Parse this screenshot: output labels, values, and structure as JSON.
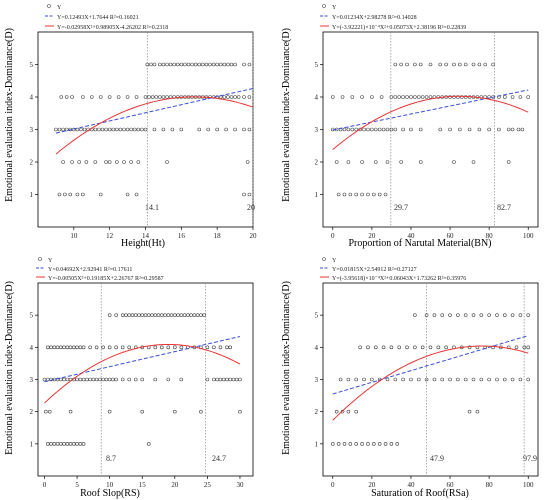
{
  "colors": {
    "points": "#444444",
    "linear": "#3a4fd6",
    "quadratic": "#e83434",
    "marker": "#888888",
    "axis": "#000000"
  },
  "chart_data": [
    {
      "type": "scatter",
      "xlabel": "Height(Ht)",
      "ylabel": "Emotional evaluation index-Dominance(D)",
      "xlim": [
        8,
        20
      ],
      "ylim": [
        0,
        6
      ],
      "xticks": [
        "10",
        "12",
        "14",
        "16",
        "18",
        "20"
      ],
      "yticks": [
        "1",
        "2",
        "3",
        "4",
        "5"
      ],
      "legend": {
        "placement": "top-left",
        "series": "Y",
        "linear": "Y=0.12493X+1.7644   R²=0.16021",
        "quadratic": "Y=-0.02958X²+0.98905X-4.26202   R²=0.2318"
      },
      "linear_fit": {
        "slope": 0.12493,
        "intercept": 1.7644,
        "r2": 0.16021
      },
      "quadratic_fit": {
        "a": -0.02958,
        "b": 0.98905,
        "c": -4.26202,
        "r2": 0.2318
      },
      "fit_range": [
        9,
        20
      ],
      "markers": [
        {
          "x": 14.1,
          "label": "14.1"
        },
        {
          "x": 20,
          "label": "20"
        }
      ],
      "points": {
        "1": [
          9.2,
          9.5,
          9.8,
          10.2,
          10.5,
          11.5,
          13.0,
          13.5,
          19.5,
          19.8
        ],
        "2": [
          9.4,
          9.9,
          10.3,
          10.7,
          11.2,
          11.8,
          12.0,
          12.4,
          12.8,
          13.2,
          13.6,
          15.2,
          19.7
        ],
        "3": [
          9.0,
          9.2,
          9.4,
          9.6,
          9.8,
          10.0,
          10.2,
          10.4,
          10.6,
          10.8,
          11.0,
          11.2,
          11.4,
          11.6,
          11.8,
          12.0,
          12.2,
          12.4,
          12.6,
          12.8,
          13.0,
          13.2,
          13.4,
          13.6,
          13.8,
          14.0,
          14.5,
          15.0,
          15.5,
          16.0,
          17.0,
          17.5,
          18.0,
          18.5,
          19.0,
          19.5,
          19.8
        ],
        "4": [
          9.3,
          9.6,
          9.9,
          10.5,
          11.0,
          11.5,
          12.0,
          12.5,
          13.0,
          13.5,
          14.0,
          14.2,
          14.4,
          14.6,
          14.8,
          15.0,
          15.2,
          15.4,
          15.6,
          15.8,
          16.0,
          16.2,
          16.4,
          16.6,
          16.8,
          17.0,
          17.2,
          17.4,
          17.6,
          17.8,
          18.0,
          18.2,
          18.4,
          18.6,
          18.8,
          19.0,
          19.2,
          19.5,
          19.8
        ],
        "5": [
          14.1,
          14.3,
          14.5,
          14.8,
          15.0,
          15.2,
          15.4,
          15.6,
          15.8,
          16.0,
          16.2,
          16.4,
          16.6,
          16.8,
          17.0,
          17.2,
          17.4,
          17.6,
          17.8,
          18.0,
          18.2,
          18.4,
          18.6,
          18.8,
          19.0,
          19.5,
          19.8
        ]
      }
    },
    {
      "type": "scatter",
      "xlabel": "Proportion of Narutal Material(BN)",
      "ylabel": "Emotional evaluation index-Dominance(D)",
      "xlim": [
        -5,
        105
      ],
      "ylim": [
        0,
        6
      ],
      "xticks": [
        "0",
        "20",
        "40",
        "60",
        "80",
        "100"
      ],
      "yticks": [
        "1",
        "2",
        "3",
        "4",
        "5"
      ],
      "legend": {
        "placement": "top-left",
        "series": "Y",
        "linear": "Y=0.01234X+2.98278   R²=0.14028",
        "quadratic": "Y=(-3.92221)×10⁻⁴X²+0.05073X+2.38196   R²=0.22839"
      },
      "linear_fit": {
        "slope": 0.01234,
        "intercept": 2.98278,
        "r2": 0.14028
      },
      "quadratic_fit": {
        "a": -0.000392221,
        "b": 0.05073,
        "c": 2.38196,
        "r2": 0.22839
      },
      "fit_range": [
        0,
        100
      ],
      "markers": [
        {
          "x": 29.7,
          "label": "29.7"
        },
        {
          "x": 82.7,
          "label": "82.7"
        }
      ],
      "points": {
        "1": [
          3,
          6,
          9,
          12,
          15,
          18,
          21,
          24,
          27
        ],
        "2": [
          2,
          8,
          15,
          22,
          28,
          35,
          45,
          62,
          72,
          90
        ],
        "3": [
          0,
          2,
          4,
          6,
          8,
          10,
          12,
          14,
          16,
          18,
          20,
          22,
          24,
          26,
          28,
          30,
          32,
          36,
          40,
          45,
          55,
          60,
          65,
          70,
          75,
          80,
          85,
          90,
          92,
          95,
          97
        ],
        "4": [
          0,
          5,
          10,
          15,
          20,
          25,
          30,
          32,
          34,
          36,
          38,
          40,
          42,
          44,
          46,
          48,
          50,
          52,
          54,
          56,
          58,
          60,
          62,
          64,
          66,
          68,
          70,
          72,
          74,
          76,
          78,
          80,
          82,
          85,
          88,
          92,
          96,
          100
        ],
        "5": [
          32,
          35,
          38,
          42,
          45,
          50,
          55,
          58,
          62,
          65,
          68,
          72,
          75,
          78,
          82
        ]
      }
    },
    {
      "type": "scatter",
      "xlabel": "Roof Slop(RS)",
      "ylabel": "Emotional evaluation index-Dominance(D)",
      "xlim": [
        -1,
        32
      ],
      "ylim": [
        0,
        6
      ],
      "xticks": [
        "0",
        "5",
        "10",
        "15",
        "20",
        "25",
        "30"
      ],
      "yticks": [
        "1",
        "2",
        "3",
        "4",
        "5"
      ],
      "legend": {
        "placement": "top-left",
        "series": "Y",
        "linear": "Y=0.04692X+2.92941   R²=0.17611",
        "quadratic": "Y=-0.00505X²+0.19185X+2.26767   R²=0.29587"
      },
      "linear_fit": {
        "slope": 0.04692,
        "intercept": 2.92941,
        "r2": 0.17611
      },
      "quadratic_fit": {
        "a": -0.00505,
        "b": 0.19185,
        "c": 2.26767,
        "r2": 0.29587
      },
      "fit_range": [
        0,
        30
      ],
      "markers": [
        {
          "x": 8.7,
          "label": "8.7"
        },
        {
          "x": 24.7,
          "label": "24.7"
        }
      ],
      "points": {
        "1": [
          0.5,
          1.0,
          1.5,
          2.0,
          2.5,
          3.0,
          3.5,
          4.0,
          4.5,
          5.0,
          5.5,
          6.0,
          16.0
        ],
        "2": [
          0.2,
          0.8,
          4.0,
          10.0,
          15.0,
          20.0,
          24.0,
          30.0
        ],
        "3": [
          0,
          0.5,
          1.0,
          1.5,
          2.0,
          2.5,
          3.0,
          3.5,
          4.0,
          4.5,
          5.0,
          5.5,
          6.0,
          6.5,
          7.0,
          7.5,
          8.0,
          8.5,
          9.0,
          9.5,
          10.0,
          10.5,
          11.0,
          12.0,
          13.0,
          14.0,
          15.0,
          17.0,
          19.0,
          21.0,
          25.0,
          26.0,
          26.5,
          27.0,
          27.5,
          28.0,
          28.5,
          29.0,
          29.5,
          30.0
        ],
        "4": [
          0.5,
          1.0,
          1.5,
          2.0,
          2.5,
          3.0,
          3.5,
          4.0,
          4.5,
          5.0,
          5.5,
          6.0,
          7.0,
          8.0,
          9.0,
          10.0,
          11.0,
          12.0,
          13.0,
          14.0,
          15.0,
          16.0,
          17.0,
          18.0,
          19.0,
          20.0,
          21.0,
          22.0,
          23.0,
          24.0,
          25.0,
          26.0,
          27.0,
          28.0,
          28.5
        ],
        "5": [
          10.0,
          11.0,
          12.0,
          12.5,
          13.0,
          13.5,
          14.0,
          14.5,
          15.0,
          15.5,
          16.0,
          16.5,
          17.0,
          17.5,
          18.0,
          18.5,
          19.0,
          19.5,
          20.0,
          20.5,
          21.0,
          21.5,
          22.0,
          22.5,
          23.0,
          23.5,
          24.0,
          24.5
        ]
      }
    },
    {
      "type": "scatter",
      "xlabel": "Saturation of Roof(RSa)",
      "ylabel": "Emotional evaluation index-Dominance(D)",
      "xlim": [
        -5,
        105
      ],
      "ylim": [
        0,
        6
      ],
      "xticks": [
        "0",
        "20",
        "40",
        "60",
        "80",
        "100"
      ],
      "yticks": [
        "1",
        "2",
        "3",
        "4",
        "5"
      ],
      "legend": {
        "placement": "top-left",
        "series": "Y",
        "linear": "Y=0.01815X+2.54912   R²=0.27127",
        "quadratic": "Y=(-3.95618)×10⁻⁴X²+0.06043X+1.73262   R²=0.35976"
      },
      "linear_fit": {
        "slope": 0.01815,
        "intercept": 2.54912,
        "r2": 0.27127
      },
      "quadratic_fit": {
        "a": -0.000395618,
        "b": 0.06043,
        "c": 1.73262,
        "r2": 0.35976
      },
      "fit_range": [
        0,
        100
      ],
      "markers": [
        {
          "x": 47.9,
          "label": "47.9"
        },
        {
          "x": 97.9,
          "label": "97.9"
        }
      ],
      "points": {
        "1": [
          0,
          3,
          6,
          9,
          12,
          15,
          18,
          21,
          24,
          27,
          30,
          33
        ],
        "2": [
          2,
          5,
          8,
          12,
          70,
          74
        ],
        "3": [
          4,
          8,
          12,
          16,
          20,
          24,
          28,
          32,
          36,
          40,
          44,
          48,
          52,
          56,
          60,
          64,
          68,
          72,
          76,
          80,
          84,
          88,
          92,
          96,
          100
        ],
        "4": [
          14,
          18,
          22,
          26,
          30,
          34,
          38,
          42,
          46,
          50,
          54,
          58,
          62,
          66,
          70,
          74,
          78,
          82,
          86,
          90,
          94,
          98,
          100
        ],
        "5": [
          42,
          48,
          52,
          56,
          60,
          64,
          68,
          72,
          76,
          80,
          84,
          88,
          92,
          96,
          100
        ]
      }
    }
  ]
}
